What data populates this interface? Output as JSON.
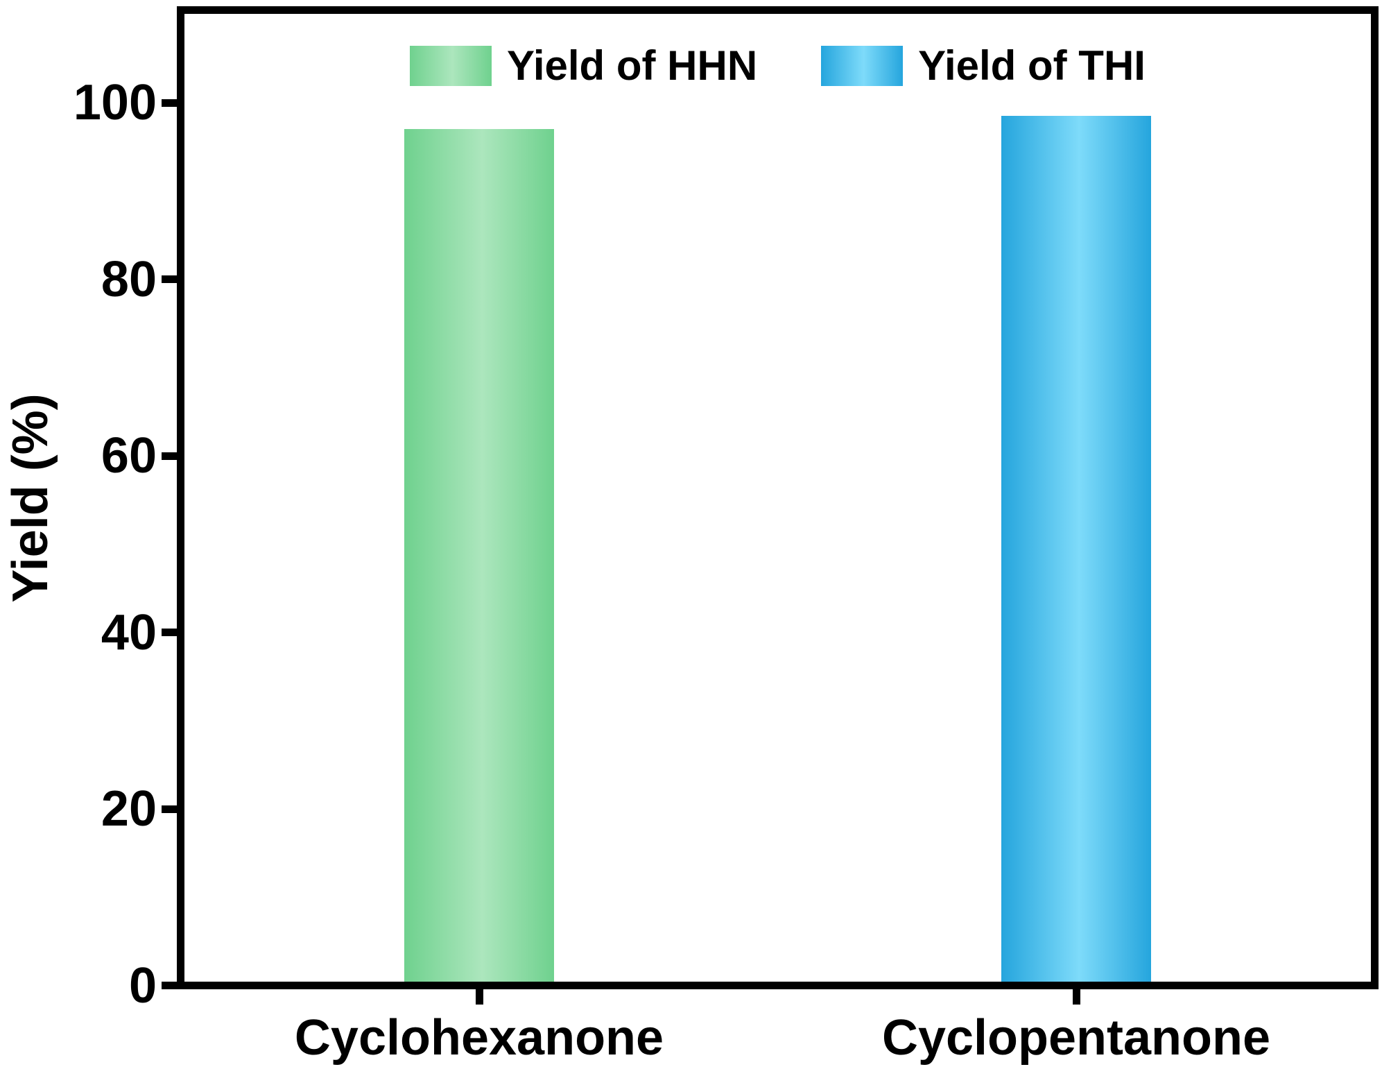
{
  "chart_data": {
    "type": "bar",
    "title": "",
    "xlabel": "",
    "ylabel": "Yield (%)",
    "categories": [
      "Cyclohexanone",
      "Cyclopentanone"
    ],
    "series": [
      {
        "name": "Yield of HHN",
        "values": [
          97,
          null
        ],
        "color_edge": "#6fd18e",
        "color_center": "#ace6bd"
      },
      {
        "name": "Yield of THI",
        "values": [
          null,
          98.5
        ],
        "color_edge": "#25a5dd",
        "color_center": "#7edbfa"
      }
    ],
    "ylim": [
      0,
      110.5
    ],
    "yticks": [
      0,
      20,
      40,
      60,
      80,
      100
    ],
    "legend_position": "top-center-inside",
    "grid": false,
    "axis_color": "#000000",
    "text_color": "#000000",
    "background_color": "#ffffff"
  }
}
